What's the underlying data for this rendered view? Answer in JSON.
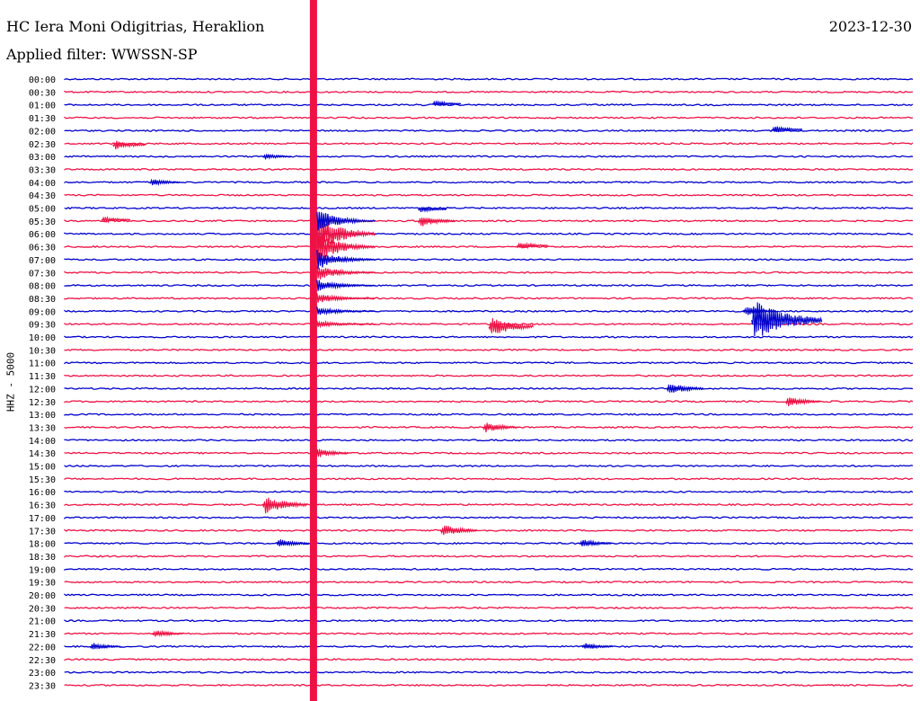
{
  "header": {
    "station": "HC Iera Moni Odigitrias, Heraklion",
    "filter": "Applied filter: WWSSN-SP",
    "date": "2023-12-30"
  },
  "chart_data": {
    "type": "line",
    "title": "HC Iera Moni Odigitrias, Heraklion",
    "subtitle": "Applied filter: WWSSN-SP",
    "ylabel": "HHZ - 5000",
    "rows": [
      "00:00",
      "00:30",
      "01:00",
      "01:30",
      "02:00",
      "02:30",
      "03:00",
      "03:30",
      "04:00",
      "04:30",
      "05:00",
      "05:30",
      "06:00",
      "06:30",
      "07:00",
      "07:30",
      "08:00",
      "08:30",
      "09:00",
      "09:30",
      "10:00",
      "10:30",
      "11:00",
      "11:30",
      "12:00",
      "12:30",
      "13:00",
      "13:30",
      "14:00",
      "14:30",
      "15:00",
      "15:30",
      "16:00",
      "16:30",
      "17:00",
      "17:30",
      "18:00",
      "18:30",
      "19:00",
      "19:30",
      "20:00",
      "20:30",
      "21:00",
      "21:30",
      "22:00",
      "22:30",
      "23:00",
      "23:30"
    ],
    "colors": [
      "#0000cc",
      "#ee1144"
    ],
    "minutes_per_row": 30,
    "events": [
      {
        "row": 1.9,
        "minute": 13.0,
        "amplitude": 4,
        "color": "#0000cc"
      },
      {
        "row": 3.9,
        "minute": 25.0,
        "amplitude": 5,
        "color": "#0000cc"
      },
      {
        "row": 5.1,
        "minute": 1.7,
        "amplitude": 6,
        "color": "#ee1144"
      },
      {
        "row": 6.0,
        "minute": 7.0,
        "amplitude": 4,
        "color": "#0000cc"
      },
      {
        "row": 8.0,
        "minute": 3.0,
        "amplitude": 5,
        "color": "#0000cc"
      },
      {
        "row": 10.9,
        "minute": 1.3,
        "amplitude": 4,
        "color": "#ee1144"
      },
      {
        "row": 11.0,
        "minute": 12.5,
        "amplitude": 8,
        "color": "#ee1144"
      },
      {
        "row": 10.1,
        "minute": 12.5,
        "amplitude": 4,
        "color": "#0000cc"
      },
      {
        "row": 12.9,
        "minute": 16.0,
        "amplitude": 5,
        "color": "#ee1144"
      },
      {
        "row": 19.2,
        "minute": 15.0,
        "amplitude": 12,
        "color": "#ee1144"
      },
      {
        "row": 18.0,
        "minute": 24.0,
        "amplitude": 6,
        "color": "#0000cc"
      },
      {
        "row": 18.7,
        "minute": 24.3,
        "amplitude": 25,
        "color": "#0000cc"
      },
      {
        "row": 24.0,
        "minute": 21.3,
        "amplitude": 8,
        "color": "#0000cc"
      },
      {
        "row": 25.0,
        "minute": 25.5,
        "amplitude": 7,
        "color": "#ee1144"
      },
      {
        "row": 27.0,
        "minute": 14.8,
        "amplitude": 7,
        "color": "#ee1144"
      },
      {
        "row": 29.0,
        "minute": 8.8,
        "amplitude": 7,
        "color": "#ee1144"
      },
      {
        "row": 33.0,
        "minute": 7.0,
        "amplitude": 12,
        "color": "#ee1144"
      },
      {
        "row": 35.0,
        "minute": 13.3,
        "amplitude": 8,
        "color": "#ee1144"
      },
      {
        "row": 36.0,
        "minute": 7.5,
        "amplitude": 6,
        "color": "#0000cc"
      },
      {
        "row": 36.0,
        "minute": 18.2,
        "amplitude": 6,
        "color": "#0000cc"
      },
      {
        "row": 43.0,
        "minute": 3.1,
        "amplitude": 5,
        "color": "#ee1144"
      },
      {
        "row": 44.0,
        "minute": 0.9,
        "amplitude": 5,
        "color": "#0000cc"
      },
      {
        "row": 44.0,
        "minute": 18.3,
        "amplitude": 5,
        "color": "#0000cc"
      }
    ],
    "grid": false,
    "legend": "none"
  }
}
